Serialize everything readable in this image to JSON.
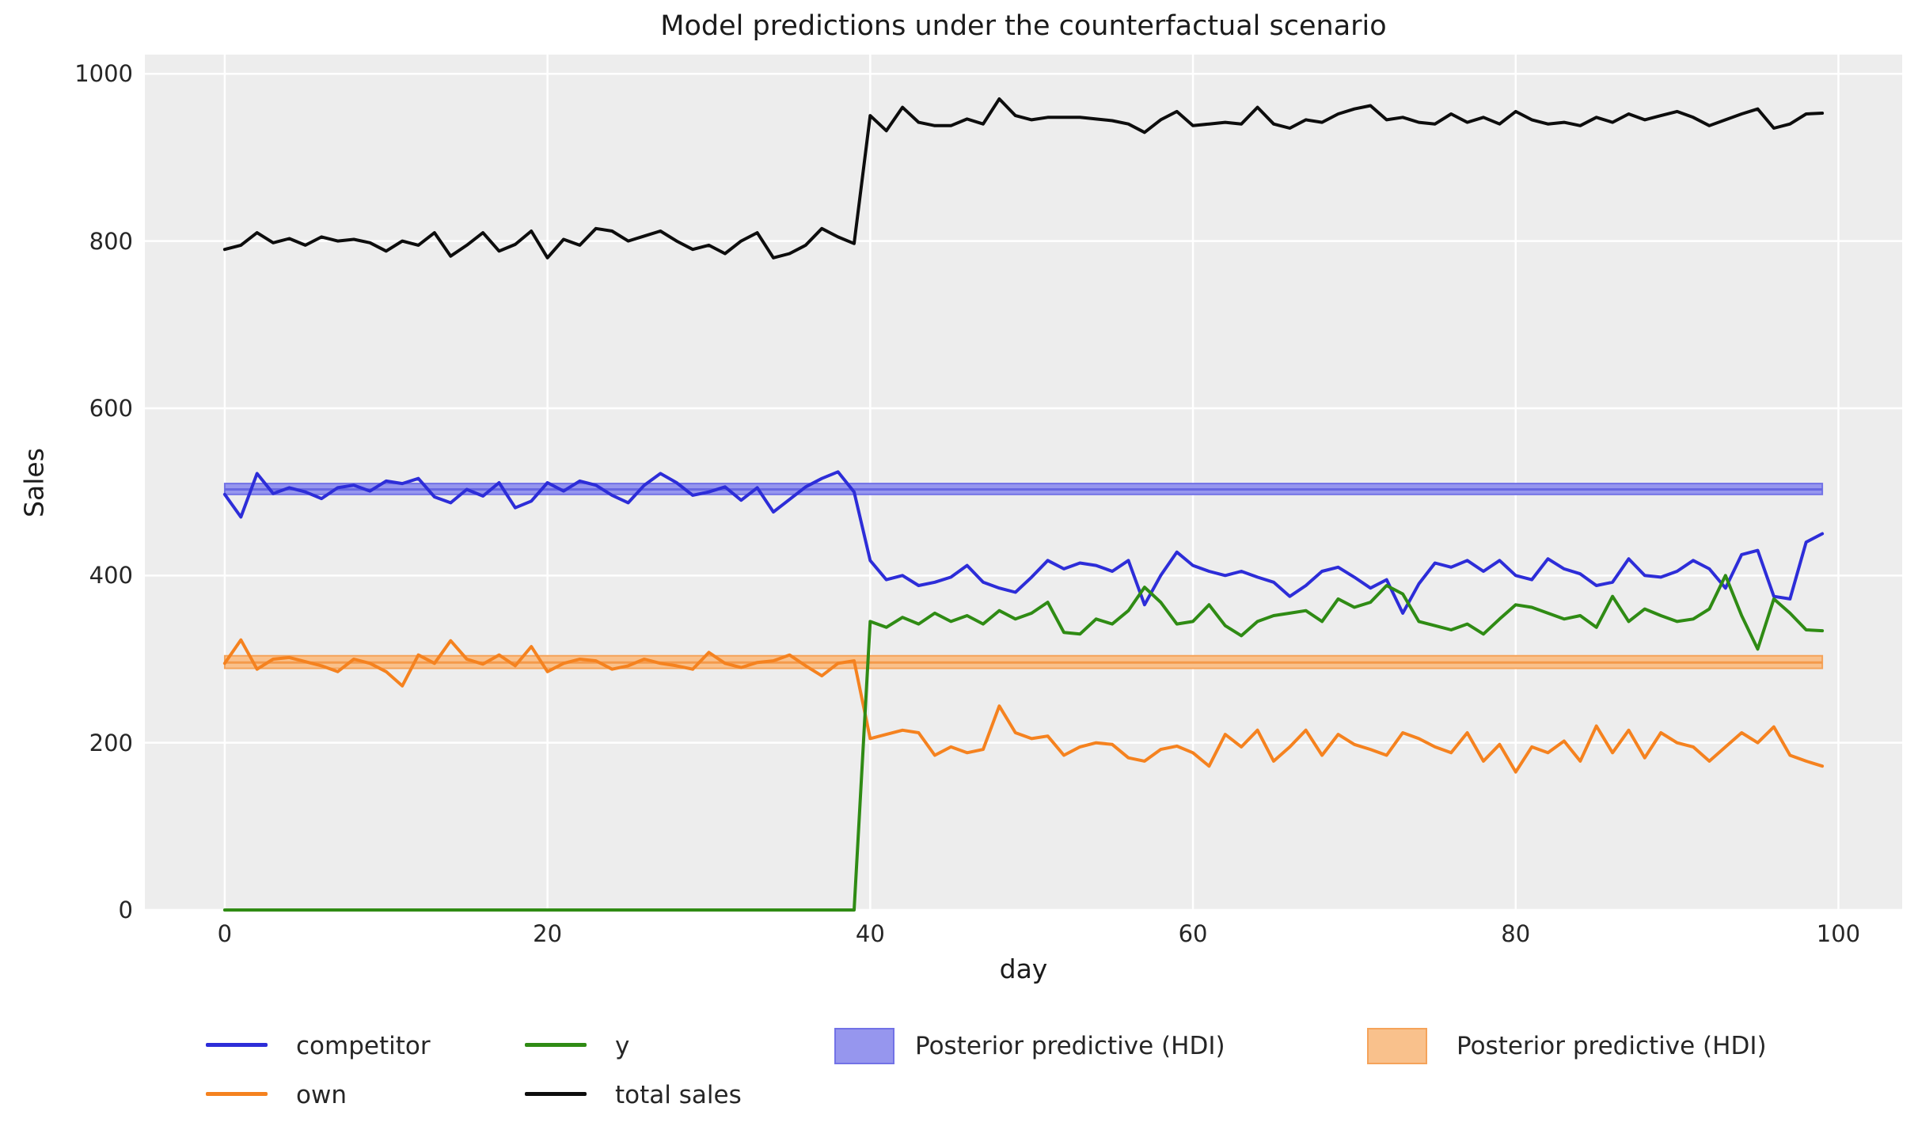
{
  "chart_data": {
    "type": "line",
    "title": "Model predictions under the counterfactual scenario",
    "xlabel": "day",
    "ylabel": "Sales",
    "x_ticks": [
      0,
      20,
      40,
      60,
      80,
      100
    ],
    "y_ticks": [
      0,
      200,
      400,
      600,
      800,
      1000
    ],
    "xlim": [
      -4.95,
      103.95
    ],
    "ylim": [
      0,
      1023
    ],
    "grid": true,
    "grid_color": "#ffffff",
    "plot_bg": "#ededed",
    "legend_position": "below-axes",
    "x": [
      0,
      1,
      2,
      3,
      4,
      5,
      6,
      7,
      8,
      9,
      10,
      11,
      12,
      13,
      14,
      15,
      16,
      17,
      18,
      19,
      20,
      21,
      22,
      23,
      24,
      25,
      26,
      27,
      28,
      29,
      30,
      31,
      32,
      33,
      34,
      35,
      36,
      37,
      38,
      39,
      40,
      41,
      42,
      43,
      44,
      45,
      46,
      47,
      48,
      49,
      50,
      51,
      52,
      53,
      54,
      55,
      56,
      57,
      58,
      59,
      60,
      61,
      62,
      63,
      64,
      65,
      66,
      67,
      68,
      69,
      70,
      71,
      72,
      73,
      74,
      75,
      76,
      77,
      78,
      79,
      80,
      81,
      82,
      83,
      84,
      85,
      86,
      87,
      88,
      89,
      90,
      91,
      92,
      93,
      94,
      95,
      96,
      97,
      98,
      99
    ],
    "series": [
      {
        "name": "competitor",
        "color": "#2d2dd8",
        "values": [
          497,
          470,
          522,
          498,
          505,
          500,
          492,
          505,
          508,
          501,
          513,
          510,
          516,
          494,
          487,
          503,
          495,
          511,
          481,
          489,
          511,
          501,
          513,
          508,
          496,
          487,
          508,
          522,
          511,
          496,
          500,
          506,
          490,
          505,
          476,
          491,
          506,
          516,
          524,
          500,
          418,
          395,
          400,
          388,
          392,
          398,
          412,
          392,
          385,
          380,
          398,
          418,
          408,
          415,
          412,
          405,
          418,
          365,
          400,
          428,
          412,
          405,
          400,
          405,
          398,
          392,
          375,
          388,
          405,
          410,
          398,
          385,
          395,
          355,
          390,
          415,
          410,
          418,
          405,
          418,
          400,
          395,
          420,
          408,
          402,
          388,
          392,
          420,
          400,
          398,
          405,
          418,
          408,
          385,
          425,
          430,
          375,
          372,
          440,
          450
        ]
      },
      {
        "name": "own",
        "color": "#f5821f",
        "values": [
          295,
          323,
          288,
          300,
          302,
          297,
          292,
          285,
          300,
          295,
          285,
          268,
          305,
          295,
          322,
          300,
          294,
          305,
          292,
          315,
          285,
          295,
          300,
          298,
          288,
          292,
          300,
          295,
          292,
          288,
          308,
          295,
          290,
          296,
          298,
          305,
          292,
          280,
          295,
          298,
          205,
          210,
          215,
          212,
          185,
          195,
          188,
          192,
          244,
          212,
          205,
          208,
          185,
          195,
          200,
          198,
          182,
          178,
          192,
          196,
          188,
          172,
          210,
          195,
          215,
          178,
          195,
          215,
          185,
          210,
          198,
          192,
          185,
          212,
          205,
          195,
          188,
          212,
          178,
          198,
          165,
          195,
          188,
          202,
          178,
          220,
          188,
          215,
          182,
          212,
          200,
          195,
          178,
          195,
          212,
          200,
          219,
          185,
          178,
          172
        ]
      },
      {
        "name": "y",
        "color": "#2f8b14",
        "values": [
          0,
          0,
          0,
          0,
          0,
          0,
          0,
          0,
          0,
          0,
          0,
          0,
          0,
          0,
          0,
          0,
          0,
          0,
          0,
          0,
          0,
          0,
          0,
          0,
          0,
          0,
          0,
          0,
          0,
          0,
          0,
          0,
          0,
          0,
          0,
          0,
          0,
          0,
          0,
          0,
          345,
          338,
          350,
          342,
          355,
          345,
          352,
          342,
          358,
          348,
          355,
          368,
          332,
          330,
          348,
          342,
          358,
          386,
          368,
          342,
          345,
          365,
          340,
          328,
          345,
          352,
          355,
          358,
          345,
          372,
          362,
          368,
          388,
          378,
          345,
          340,
          335,
          342,
          330,
          348,
          365,
          362,
          355,
          348,
          352,
          338,
          375,
          345,
          360,
          352,
          345,
          348,
          360,
          400,
          352,
          312,
          372,
          355,
          335,
          334
        ]
      },
      {
        "name": "total sales",
        "color": "#0d0d0d",
        "values": [
          790,
          795,
          810,
          798,
          803,
          795,
          805,
          800,
          802,
          798,
          788,
          800,
          795,
          810,
          782,
          795,
          810,
          788,
          796,
          812,
          780,
          802,
          795,
          815,
          812,
          800,
          806,
          812,
          800,
          790,
          795,
          785,
          800,
          810,
          780,
          785,
          795,
          815,
          805,
          797,
          950,
          932,
          960,
          942,
          938,
          938,
          946,
          940,
          970,
          950,
          945,
          948,
          948,
          948,
          946,
          944,
          940,
          930,
          945,
          955,
          938,
          940,
          942,
          940,
          960,
          940,
          935,
          945,
          942,
          952,
          958,
          962,
          945,
          948,
          942,
          940,
          952,
          942,
          948,
          940,
          955,
          945,
          940,
          942,
          938,
          948,
          942,
          952,
          945,
          950,
          955,
          948,
          938,
          945,
          952,
          958,
          935,
          940,
          952,
          953
        ]
      }
    ],
    "bands": [
      {
        "name": "Posterior predictive (HDI)",
        "applies_to": "competitor",
        "x_start": 0,
        "x_end": 99,
        "lo": 497,
        "hi": 510,
        "mean": 503,
        "fill": "#9696ee",
        "edge": "#7272e6",
        "mean_color": "#6868e2"
      },
      {
        "name": "Posterior predictive (HDI)",
        "applies_to": "own",
        "x_start": 0,
        "x_end": 99,
        "lo": 289,
        "hi": 304,
        "mean": 296,
        "fill": "#f9c18c",
        "edge": "#f5a35a",
        "mean_color": "#f49a4b"
      }
    ]
  },
  "legend": {
    "entries": [
      {
        "label": "competitor",
        "type": "line",
        "color": "#2d2dd8"
      },
      {
        "label": "own",
        "type": "line",
        "color": "#f5821f"
      },
      {
        "label": "y",
        "type": "line",
        "color": "#2f8b14"
      },
      {
        "label": "total sales",
        "type": "line",
        "color": "#0d0d0d"
      },
      {
        "label": "Posterior predictive (HDI)",
        "type": "patch",
        "fill": "#9696ee",
        "edge": "#7272e6"
      },
      {
        "label": "Posterior predictive (HDI)",
        "type": "patch",
        "fill": "#f9c18c",
        "edge": "#f5a35a"
      }
    ]
  },
  "colors": {
    "figure_bg": "#ffffff",
    "axes_bg": "#ededed",
    "grid": "#ffffff",
    "text": "#262626"
  }
}
